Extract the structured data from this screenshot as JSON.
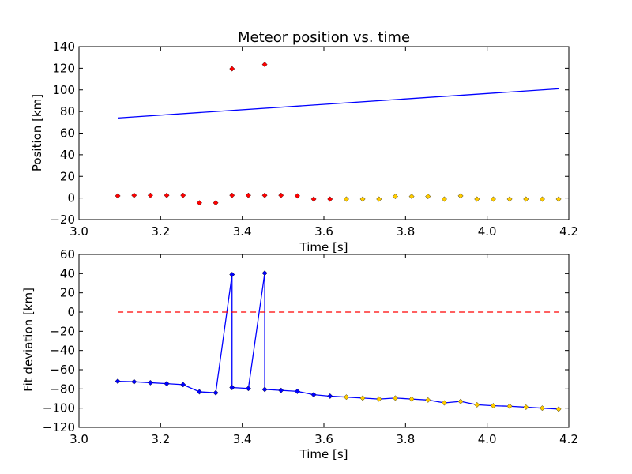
{
  "figure": {
    "background": "#ffffff"
  },
  "chart_data": [
    {
      "type": "scatter",
      "title": "Meteor position vs. time",
      "xlabel": "Time [s]",
      "ylabel": "Position [km]",
      "xlim": [
        3.0,
        4.2
      ],
      "ylim": [
        -20,
        140
      ],
      "xticks": [
        "3.0",
        "3.2",
        "3.4",
        "3.6",
        "3.8",
        "4.0",
        "4.2"
      ],
      "yticks": [
        "−20",
        "0",
        "20",
        "40",
        "60",
        "80",
        "100",
        "120",
        "140"
      ],
      "grid": false,
      "series": [
        {
          "style": "markers",
          "color": "#ff0000",
          "points": [
            [
              3.095,
              2
            ],
            [
              3.135,
              2.5
            ],
            [
              3.175,
              2.5
            ],
            [
              3.215,
              2.5
            ],
            [
              3.255,
              2.5
            ],
            [
              3.295,
              -4.5
            ],
            [
              3.335,
              -4.5
            ],
            [
              3.375,
              2.5
            ],
            [
              3.375,
              119.5
            ],
            [
              3.415,
              2.5
            ],
            [
              3.455,
              123.5
            ],
            [
              3.455,
              2.5
            ],
            [
              3.495,
              2.5
            ],
            [
              3.535,
              2
            ],
            [
              3.575,
              -1
            ],
            [
              3.615,
              -1
            ]
          ]
        },
        {
          "style": "markers",
          "color": "#ffcc00",
          "points": [
            [
              3.655,
              -1
            ],
            [
              3.695,
              -1
            ],
            [
              3.735,
              -1
            ],
            [
              3.775,
              1.5
            ],
            [
              3.815,
              1.5
            ],
            [
              3.855,
              1.5
            ],
            [
              3.895,
              -1
            ],
            [
              3.935,
              2
            ],
            [
              3.975,
              -1
            ],
            [
              4.015,
              -1
            ],
            [
              4.055,
              -1
            ],
            [
              4.095,
              -1
            ],
            [
              4.135,
              -1
            ],
            [
              4.175,
              -1
            ]
          ]
        },
        {
          "style": "line",
          "color": "#0000ff",
          "points": [
            [
              3.095,
              74
            ],
            [
              4.175,
              101
            ]
          ]
        }
      ]
    },
    {
      "type": "line",
      "title": "",
      "xlabel": "Time [s]",
      "ylabel": "Fit deviation [km]",
      "xlim": [
        3.0,
        4.2
      ],
      "ylim": [
        -120,
        60
      ],
      "xticks": [
        "3.0",
        "3.2",
        "3.4",
        "3.6",
        "3.8",
        "4.0",
        "4.2"
      ],
      "yticks": [
        "−120",
        "−100",
        "−80",
        "−60",
        "−40",
        "−20",
        "0",
        "20",
        "40",
        "60"
      ],
      "grid": false,
      "series": [
        {
          "style": "line-markers",
          "color": "#0000ff",
          "points": [
            [
              3.095,
              -72
            ],
            [
              3.135,
              -72.5
            ],
            [
              3.175,
              -73.5
            ],
            [
              3.215,
              -74.5
            ],
            [
              3.255,
              -75.5
            ],
            [
              3.295,
              -83
            ],
            [
              3.335,
              -84
            ],
            [
              3.375,
              39
            ],
            [
              3.375,
              -78.5
            ],
            [
              3.415,
              -79.5
            ],
            [
              3.455,
              40.5
            ],
            [
              3.455,
              -80.5
            ],
            [
              3.495,
              -81.5
            ],
            [
              3.535,
              -82.5
            ],
            [
              3.575,
              -86
            ],
            [
              3.615,
              -87.5
            ],
            [
              3.655,
              -88.5
            ],
            [
              3.695,
              -89.5
            ],
            [
              3.735,
              -90.5
            ],
            [
              3.775,
              -89.5
            ],
            [
              3.815,
              -90.5
            ],
            [
              3.855,
              -91.5
            ],
            [
              3.895,
              -94.5
            ],
            [
              3.935,
              -93
            ],
            [
              3.975,
              -96.5
            ],
            [
              4.015,
              -97.5
            ],
            [
              4.055,
              -98
            ],
            [
              4.095,
              -99
            ],
            [
              4.135,
              -100
            ],
            [
              4.175,
              -101
            ]
          ],
          "marker_colors": [
            "#0000ff",
            "#0000ff",
            "#0000ff",
            "#0000ff",
            "#0000ff",
            "#0000ff",
            "#0000ff",
            "#0000ff",
            "#0000ff",
            "#0000ff",
            "#0000ff",
            "#0000ff",
            "#0000ff",
            "#0000ff",
            "#0000ff",
            "#0000ff",
            "#ffcc00",
            "#ffcc00",
            "#ffcc00",
            "#ffcc00",
            "#ffcc00",
            "#ffcc00",
            "#ffcc00",
            "#ffcc00",
            "#ffcc00",
            "#ffcc00",
            "#ffcc00",
            "#ffcc00",
            "#ffcc00",
            "#ffcc00"
          ]
        },
        {
          "style": "dashed-line",
          "color": "#ff0000",
          "points": [
            [
              3.095,
              0
            ],
            [
              4.175,
              0
            ]
          ]
        }
      ]
    }
  ]
}
